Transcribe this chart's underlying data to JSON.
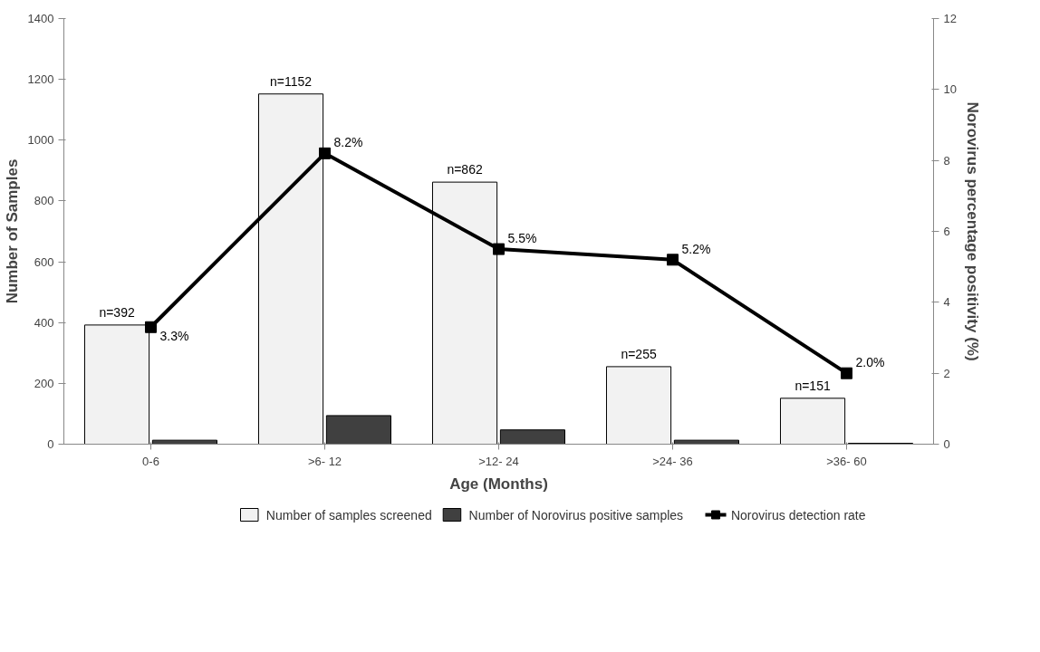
{
  "chart_data": {
    "type": "bar",
    "xlabel": "Age (Months)",
    "ylabel": "Number of Samples",
    "y2label": "Norovirus percentage positivity (%)",
    "categories": [
      "0-6",
      ">6- 12",
      ">12- 24",
      ">24- 36",
      ">36- 60"
    ],
    "series": [
      {
        "name": "Number of samples screened",
        "type": "bar",
        "color": "#f2f2f2",
        "values": [
          392,
          1152,
          862,
          255,
          151
        ],
        "value_labels": [
          "n=392",
          "n=1152",
          "n=862",
          "n=255",
          "n=151"
        ]
      },
      {
        "name": "Number of Norovirus positive samples",
        "type": "bar",
        "color": "#404040",
        "values": [
          13,
          94,
          47,
          13,
          3
        ]
      },
      {
        "name": "Norovirus detection rate",
        "type": "line",
        "axis": "y2",
        "color": "#000000",
        "marker": "square",
        "values": [
          3.3,
          8.2,
          5.5,
          5.2,
          2.0
        ],
        "value_labels": [
          "3.3%",
          "8.2%",
          "5.5%",
          "5.2%",
          "2.0%"
        ]
      }
    ],
    "ylim": [
      0,
      1400
    ],
    "yticks": [
      0,
      200,
      400,
      600,
      800,
      1000,
      1200,
      1400
    ],
    "y2lim": [
      0,
      12
    ],
    "y2ticks": [
      0,
      2,
      4,
      6,
      8,
      10,
      12
    ],
    "grid": false,
    "legend": "bottom"
  }
}
